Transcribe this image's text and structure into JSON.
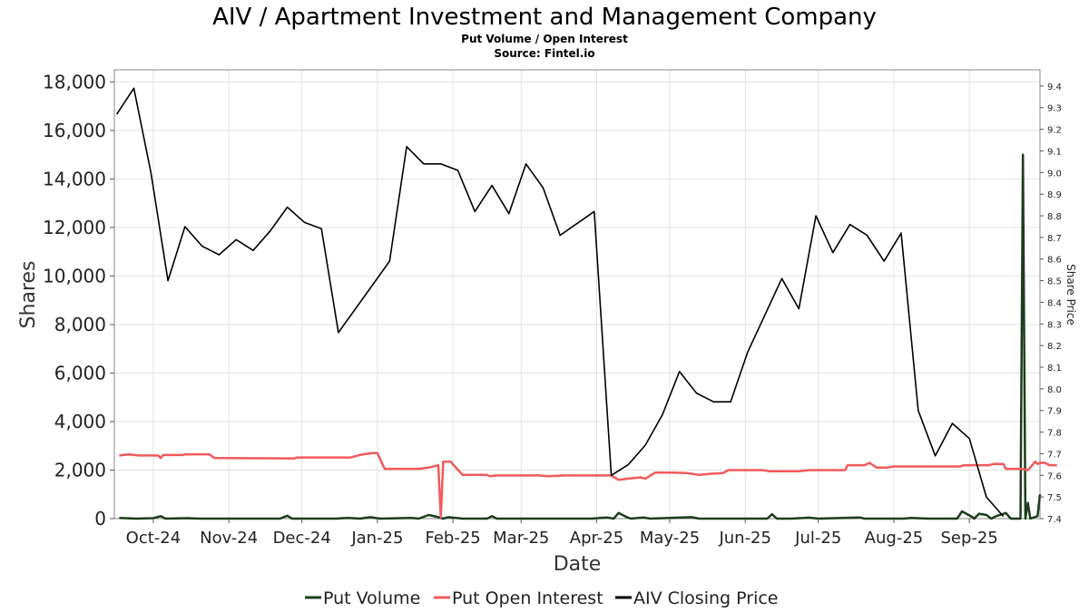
{
  "chart_data": {
    "type": "line",
    "title": "AIV / Apartment Investment and Management Company",
    "subtitle_lines": [
      "Put Volume / Open Interest",
      "Source: Fintel.io"
    ],
    "xlabel": "Date",
    "ylabel": "Shares",
    "ylabel_right": "Share Price",
    "x_range": [
      "2024-09-15",
      "2025-09-30"
    ],
    "ylim": [
      0,
      18500
    ],
    "ylim_right": [
      7.4,
      9.475
    ],
    "x_ticks": [
      {
        "date": "2024-10-01",
        "label": "Oct-24"
      },
      {
        "date": "2024-11-01",
        "label": "Nov-24"
      },
      {
        "date": "2024-12-01",
        "label": "Dec-24"
      },
      {
        "date": "2025-01-01",
        "label": "Jan-25"
      },
      {
        "date": "2025-02-01",
        "label": "Feb-25"
      },
      {
        "date": "2025-03-01",
        "label": "Mar-25"
      },
      {
        "date": "2025-04-01",
        "label": "Apr-25"
      },
      {
        "date": "2025-05-01",
        "label": "May-25"
      },
      {
        "date": "2025-06-01",
        "label": "Jun-25"
      },
      {
        "date": "2025-07-01",
        "label": "Jul-25"
      },
      {
        "date": "2025-08-01",
        "label": "Aug-25"
      },
      {
        "date": "2025-09-01",
        "label": "Sep-25"
      }
    ],
    "y_ticks_left": [
      {
        "value": 0,
        "label": "0"
      },
      {
        "value": 2000,
        "label": "2,000"
      },
      {
        "value": 4000,
        "label": "4,000"
      },
      {
        "value": 6000,
        "label": "6,000"
      },
      {
        "value": 8000,
        "label": "8,000"
      },
      {
        "value": 10000,
        "label": "10,000"
      },
      {
        "value": 12000,
        "label": "12,000"
      },
      {
        "value": 14000,
        "label": "14,000"
      },
      {
        "value": 16000,
        "label": "16,000"
      },
      {
        "value": 18000,
        "label": "18,000"
      }
    ],
    "y_ticks_right": [
      {
        "value": 7.4,
        "label": "7.4"
      },
      {
        "value": 7.5,
        "label": "7.5"
      },
      {
        "value": 7.6,
        "label": "7.6"
      },
      {
        "value": 7.7,
        "label": "7.7"
      },
      {
        "value": 7.8,
        "label": "7.8"
      },
      {
        "value": 7.9,
        "label": "7.9"
      },
      {
        "value": 8.0,
        "label": "8.0"
      },
      {
        "value": 8.1,
        "label": "8.1"
      },
      {
        "value": 8.2,
        "label": "8.2"
      },
      {
        "value": 8.3,
        "label": "8.3"
      },
      {
        "value": 8.4,
        "label": "8.4"
      },
      {
        "value": 8.5,
        "label": "8.5"
      },
      {
        "value": 8.6,
        "label": "8.6"
      },
      {
        "value": 8.7,
        "label": "8.7"
      },
      {
        "value": 8.8,
        "label": "8.8"
      },
      {
        "value": 8.9,
        "label": "8.9"
      },
      {
        "value": 9.0,
        "label": "9.0"
      },
      {
        "value": 9.1,
        "label": "9.1"
      },
      {
        "value": 9.2,
        "label": "9.2"
      },
      {
        "value": 9.3,
        "label": "9.3"
      },
      {
        "value": 9.4,
        "label": "9.4"
      }
    ],
    "grid": true,
    "legend_position": "bottom-center",
    "series": [
      {
        "name": "Put Volume",
        "axis": "left",
        "color": "#1e3d1e",
        "points": [
          [
            "2024-09-17",
            30
          ],
          [
            "2024-09-24",
            0
          ],
          [
            "2024-10-01",
            20
          ],
          [
            "2024-10-04",
            100
          ],
          [
            "2024-10-06",
            0
          ],
          [
            "2024-10-15",
            20
          ],
          [
            "2024-10-20",
            0
          ],
          [
            "2024-11-10",
            0
          ],
          [
            "2024-11-22",
            0
          ],
          [
            "2024-11-25",
            120
          ],
          [
            "2024-11-27",
            0
          ],
          [
            "2024-12-15",
            0
          ],
          [
            "2024-12-20",
            30
          ],
          [
            "2024-12-25",
            0
          ],
          [
            "2024-12-29",
            60
          ],
          [
            "2025-01-02",
            0
          ],
          [
            "2025-01-15",
            30
          ],
          [
            "2025-01-18",
            0
          ],
          [
            "2025-01-22",
            150
          ],
          [
            "2025-01-26",
            60
          ],
          [
            "2025-01-28",
            0
          ],
          [
            "2025-01-30",
            60
          ],
          [
            "2025-02-05",
            0
          ],
          [
            "2025-02-15",
            0
          ],
          [
            "2025-02-17",
            100
          ],
          [
            "2025-02-19",
            0
          ],
          [
            "2025-03-10",
            0
          ],
          [
            "2025-03-30",
            0
          ],
          [
            "2025-04-05",
            50
          ],
          [
            "2025-04-08",
            0
          ],
          [
            "2025-04-10",
            230
          ],
          [
            "2025-04-13",
            80
          ],
          [
            "2025-04-15",
            0
          ],
          [
            "2025-04-20",
            50
          ],
          [
            "2025-04-23",
            0
          ],
          [
            "2025-05-10",
            60
          ],
          [
            "2025-05-13",
            0
          ],
          [
            "2025-06-01",
            0
          ],
          [
            "2025-06-10",
            0
          ],
          [
            "2025-06-12",
            180
          ],
          [
            "2025-06-14",
            0
          ],
          [
            "2025-06-20",
            0
          ],
          [
            "2025-06-27",
            40
          ],
          [
            "2025-07-01",
            0
          ],
          [
            "2025-07-18",
            50
          ],
          [
            "2025-07-20",
            0
          ],
          [
            "2025-08-05",
            0
          ],
          [
            "2025-08-08",
            30
          ],
          [
            "2025-08-15",
            0
          ],
          [
            "2025-08-27",
            0
          ],
          [
            "2025-08-29",
            300
          ],
          [
            "2025-09-02",
            80
          ],
          [
            "2025-09-03",
            0
          ],
          [
            "2025-09-05",
            200
          ],
          [
            "2025-09-08",
            150
          ],
          [
            "2025-09-10",
            0
          ],
          [
            "2025-09-12",
            100
          ],
          [
            "2025-09-16",
            230
          ],
          [
            "2025-09-18",
            0
          ],
          [
            "2025-09-22",
            0
          ],
          [
            "2025-09-23",
            15000
          ],
          [
            "2025-09-24",
            0
          ],
          [
            "2025-09-25",
            650
          ],
          [
            "2025-09-26",
            0
          ],
          [
            "2025-09-29",
            100
          ],
          [
            "2025-09-30",
            1000
          ]
        ]
      },
      {
        "name": "Put Open Interest",
        "axis": "left",
        "color": "#f05a5a",
        "points": [
          [
            "2024-09-17",
            2600
          ],
          [
            "2024-09-21",
            2650
          ],
          [
            "2024-09-25",
            2600
          ],
          [
            "2024-10-03",
            2600
          ],
          [
            "2024-10-04",
            2500
          ],
          [
            "2024-10-05",
            2620
          ],
          [
            "2024-10-13",
            2620
          ],
          [
            "2024-10-14",
            2650
          ],
          [
            "2024-10-24",
            2650
          ],
          [
            "2024-10-26",
            2500
          ],
          [
            "2024-11-28",
            2480
          ],
          [
            "2024-11-29",
            2520
          ],
          [
            "2024-12-21",
            2520
          ],
          [
            "2024-12-26",
            2650
          ],
          [
            "2024-12-30",
            2700
          ],
          [
            "2025-01-01",
            2700
          ],
          [
            "2025-01-04",
            2050
          ],
          [
            "2025-01-18",
            2050
          ],
          [
            "2025-01-22",
            2100
          ],
          [
            "2025-01-26",
            2200
          ],
          [
            "2025-01-27",
            50
          ],
          [
            "2025-01-28",
            2350
          ],
          [
            "2025-01-31",
            2350
          ],
          [
            "2025-02-05",
            1800
          ],
          [
            "2025-02-15",
            1800
          ],
          [
            "2025-02-16",
            1750
          ],
          [
            "2025-02-19",
            1780
          ],
          [
            "2025-03-08",
            1780
          ],
          [
            "2025-03-12",
            1750
          ],
          [
            "2025-03-19",
            1780
          ],
          [
            "2025-04-01",
            1780
          ],
          [
            "2025-04-07",
            1780
          ],
          [
            "2025-04-10",
            1600
          ],
          [
            "2025-04-14",
            1650
          ],
          [
            "2025-04-19",
            1700
          ],
          [
            "2025-04-21",
            1650
          ],
          [
            "2025-04-25",
            1900
          ],
          [
            "2025-05-03",
            1900
          ],
          [
            "2025-05-08",
            1880
          ],
          [
            "2025-05-13",
            1800
          ],
          [
            "2025-05-18",
            1850
          ],
          [
            "2025-05-23",
            1880
          ],
          [
            "2025-05-25",
            2000
          ],
          [
            "2025-06-08",
            2000
          ],
          [
            "2025-06-11",
            1950
          ],
          [
            "2025-06-23",
            1950
          ],
          [
            "2025-06-27",
            2000
          ],
          [
            "2025-07-12",
            2000
          ],
          [
            "2025-07-13",
            2200
          ],
          [
            "2025-07-20",
            2200
          ],
          [
            "2025-07-22",
            2300
          ],
          [
            "2025-07-25",
            2100
          ],
          [
            "2025-07-29",
            2100
          ],
          [
            "2025-08-01",
            2150
          ],
          [
            "2025-08-15",
            2150
          ],
          [
            "2025-08-18",
            2150
          ],
          [
            "2025-08-28",
            2150
          ],
          [
            "2025-08-30",
            2200
          ],
          [
            "2025-09-09",
            2200
          ],
          [
            "2025-09-11",
            2250
          ],
          [
            "2025-09-15",
            2250
          ],
          [
            "2025-09-16",
            2050
          ],
          [
            "2025-09-20",
            2050
          ],
          [
            "2025-09-22",
            2050
          ],
          [
            "2025-09-25",
            2000
          ],
          [
            "2025-09-26",
            2100
          ],
          [
            "2025-09-28",
            2350
          ],
          [
            "2025-09-29",
            2250
          ],
          [
            "2025-09-30",
            2300
          ],
          [
            "2025-10-02",
            2300
          ],
          [
            "2025-10-04",
            2200
          ],
          [
            "2025-10-07",
            2200
          ]
        ]
      },
      {
        "name": "AIV Closing Price",
        "axis": "right",
        "color": "#000000",
        "points": [
          [
            "2024-09-16",
            9.27
          ],
          [
            "2024-09-23",
            9.39
          ],
          [
            "2024-09-30",
            9.0
          ],
          [
            "2024-10-07",
            8.5
          ],
          [
            "2024-10-14",
            8.75
          ],
          [
            "2024-10-21",
            8.66
          ],
          [
            "2024-10-28",
            8.62
          ],
          [
            "2024-11-04",
            8.69
          ],
          [
            "2024-11-11",
            8.64
          ],
          [
            "2024-11-18",
            8.73
          ],
          [
            "2024-11-25",
            8.84
          ],
          [
            "2024-12-02",
            8.77
          ],
          [
            "2024-12-09",
            8.74
          ],
          [
            "2024-12-16",
            8.26
          ],
          [
            "2025-01-06",
            8.59
          ],
          [
            "2025-01-13",
            9.12
          ],
          [
            "2025-01-20",
            9.04
          ],
          [
            "2025-01-27",
            9.04
          ],
          [
            "2025-02-03",
            9.01
          ],
          [
            "2025-02-10",
            8.82
          ],
          [
            "2025-02-17",
            8.94
          ],
          [
            "2025-02-24",
            8.81
          ],
          [
            "2025-03-03",
            9.04
          ],
          [
            "2025-03-10",
            8.93
          ],
          [
            "2025-03-17",
            8.71
          ],
          [
            "2025-03-31",
            8.82
          ],
          [
            "2025-04-07",
            7.6
          ],
          [
            "2025-04-14",
            7.65
          ],
          [
            "2025-04-21",
            7.74
          ],
          [
            "2025-04-28",
            7.88
          ],
          [
            "2025-05-05",
            8.08
          ],
          [
            "2025-05-12",
            7.98
          ],
          [
            "2025-05-19",
            7.94
          ],
          [
            "2025-05-26",
            7.94
          ],
          [
            "2025-06-02",
            8.17
          ],
          [
            "2025-06-09",
            8.34
          ],
          [
            "2025-06-16",
            8.51
          ],
          [
            "2025-06-23",
            8.37
          ],
          [
            "2025-06-30",
            8.8
          ],
          [
            "2025-07-07",
            8.63
          ],
          [
            "2025-07-14",
            8.76
          ],
          [
            "2025-07-21",
            8.71
          ],
          [
            "2025-07-28",
            8.59
          ],
          [
            "2025-08-04",
            8.72
          ],
          [
            "2025-08-11",
            7.9
          ],
          [
            "2025-08-18",
            7.69
          ],
          [
            "2025-08-25",
            7.84
          ],
          [
            "2025-09-01",
            7.77
          ],
          [
            "2025-09-08",
            7.5
          ],
          [
            "2025-09-15",
            7.41
          ]
        ]
      }
    ]
  }
}
